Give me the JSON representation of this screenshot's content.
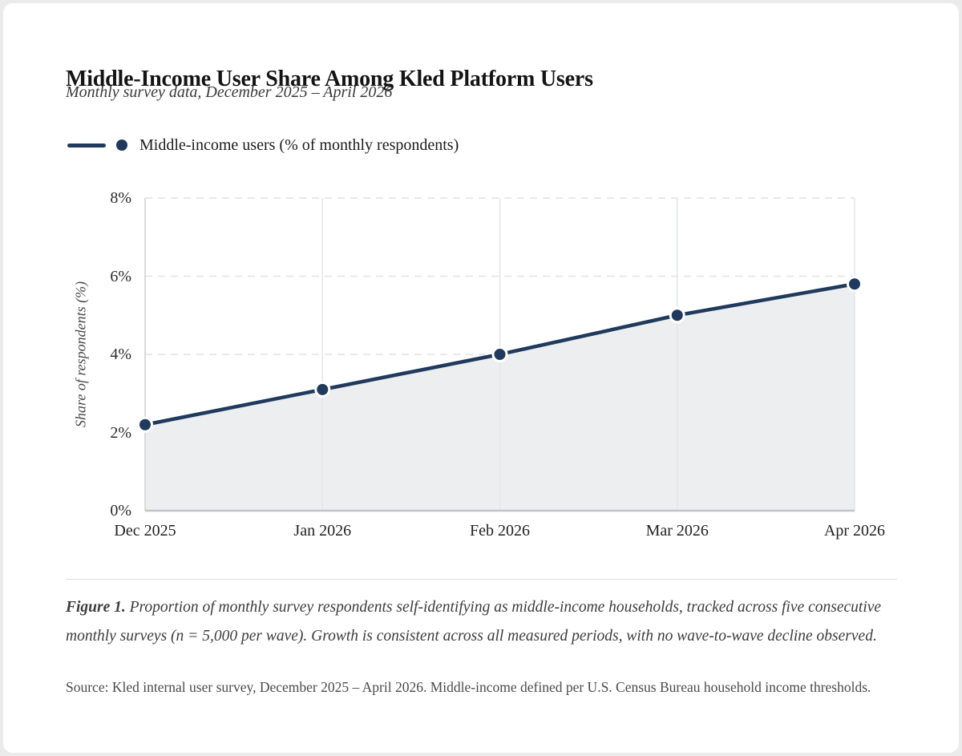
{
  "frame": {
    "background_color": "#ebebeb",
    "card_color": "#ffffff"
  },
  "header": {
    "title": "Middle-Income User Share Among Kled Platform Users",
    "subtitle": "Monthly survey data, December 2025 – April 2026"
  },
  "legend": {
    "label": "Middle-income users (% of monthly respondents)",
    "marker_color": "#203a5e"
  },
  "chart_data": {
    "type": "line",
    "title": "Middle-Income User Share Among Kled Platform Users",
    "categories": [
      "Dec 2025",
      "Jan 2026",
      "Feb 2026",
      "Mar 2026",
      "Apr 2026"
    ],
    "series": [
      {
        "name": "Middle-income users (% of monthly respondents)",
        "values": [
          2.2,
          3.1,
          4.0,
          5.0,
          5.8
        ]
      }
    ],
    "xlabel": "",
    "ylabel": "Share of respondents (%)",
    "ylim": [
      0,
      8
    ],
    "yticks": [
      0,
      2,
      4,
      6,
      8
    ],
    "ytick_suffix": "%",
    "grid": true,
    "legend_position": "top-left",
    "colors": {
      "line": "#203a5e",
      "marker": "#203a5e",
      "marker_stroke": "#ffffff",
      "area_fill": "#eceef0",
      "h_gridline": "#e2e2e2",
      "v_gridline": "#e4e6e8",
      "y_axis_line": "#d5d7d9",
      "x_axis_line": "#c2c5c8"
    }
  },
  "caption": {
    "figure_label": "Figure 1.",
    "text": " Proportion of monthly survey respondents self-identifying as middle-income households, tracked across five consecutive monthly surveys (n = 5,000 per wave). Growth is consistent across all measured periods, with no wave-to-wave decline observed."
  },
  "source": "Source: Kled internal user survey, December 2025 – April 2026. Middle-income defined per U.S. Census Bureau household income thresholds."
}
